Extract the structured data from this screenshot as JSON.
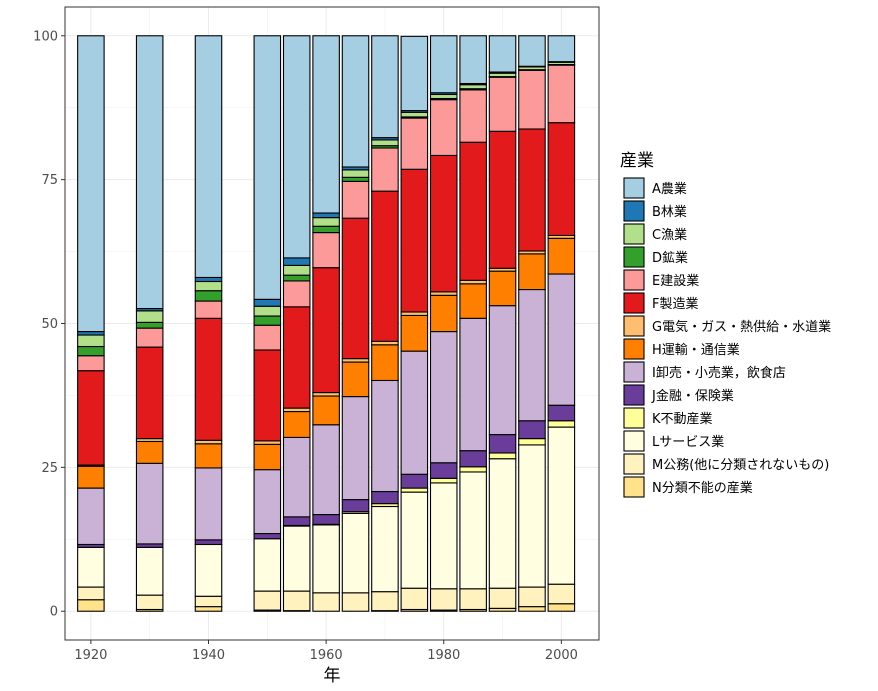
{
  "chart_data": {
    "type": "bar",
    "stacked": true,
    "xlabel": "年",
    "ylabel": "",
    "xlim": [
      1915.6,
      2006.4
    ],
    "ylim": [
      -5,
      105
    ],
    "x_ticks": [
      1920,
      1940,
      1960,
      1980,
      2000
    ],
    "y_ticks": [
      0,
      25,
      50,
      75,
      100
    ],
    "grid": true,
    "legend_title": "産業",
    "legend_position": "right",
    "bar_width_years": 4.5,
    "years": [
      1920,
      1930,
      1940,
      1950,
      1955,
      1960,
      1965,
      1970,
      1975,
      1980,
      1985,
      1990,
      1995,
      2000
    ],
    "series": [
      {
        "name": "N分類不能の産業",
        "color": "#FFE28A",
        "values": [
          2.0,
          0.3,
          0.8,
          0.2,
          0.1,
          0.0,
          0.0,
          0.1,
          0.3,
          0.2,
          0.3,
          0.5,
          0.8,
          1.3
        ]
      },
      {
        "name": "M公務(他に分類されないもの)",
        "color": "#FFF2BE",
        "values": [
          2.2,
          2.5,
          1.8,
          3.3,
          3.4,
          3.2,
          3.2,
          3.3,
          3.7,
          3.7,
          3.6,
          3.5,
          3.4,
          3.4
        ]
      },
      {
        "name": "Lサービス業",
        "color": "#FFFEE0",
        "values": [
          6.9,
          8.3,
          9.0,
          9.1,
          11.3,
          11.8,
          13.8,
          14.8,
          16.7,
          18.4,
          20.3,
          22.5,
          24.7,
          27.3
        ]
      },
      {
        "name": "K不動産業",
        "color": "#FFFF99",
        "values": [
          0.0,
          0.0,
          0.0,
          0.0,
          0.1,
          0.1,
          0.3,
          0.5,
          0.7,
          0.8,
          0.9,
          1.0,
          1.1,
          1.1
        ]
      },
      {
        "name": "J金融・保険業",
        "color": "#6A3D9A",
        "values": [
          0.5,
          0.6,
          0.8,
          0.9,
          1.5,
          1.7,
          2.1,
          2.1,
          2.4,
          2.7,
          2.8,
          3.2,
          3.1,
          2.7
        ]
      },
      {
        "name": "I卸売・小売業，飲食店",
        "color": "#CAB2D6",
        "values": [
          9.8,
          14.0,
          12.5,
          11.1,
          13.8,
          15.6,
          17.9,
          19.3,
          21.4,
          22.8,
          23.0,
          22.4,
          22.8,
          22.8
        ]
      },
      {
        "name": "H運輸・通信業",
        "color": "#FF7F00",
        "values": [
          3.8,
          3.8,
          4.2,
          4.4,
          4.5,
          5.0,
          6.0,
          6.2,
          6.2,
          6.3,
          6.0,
          6.0,
          6.2,
          6.2
        ]
      },
      {
        "name": "G電気・ガス・熱供給・水道業",
        "color": "#FDBF6F",
        "values": [
          0.2,
          0.5,
          0.6,
          0.6,
          0.6,
          0.6,
          0.6,
          0.6,
          0.6,
          0.6,
          0.6,
          0.5,
          0.5,
          0.5
        ]
      },
      {
        "name": "F製造業",
        "color": "#E31A1C",
        "values": [
          16.4,
          15.9,
          21.2,
          15.8,
          17.6,
          21.7,
          24.4,
          26.1,
          24.8,
          23.7,
          24.0,
          23.8,
          21.2,
          19.6
        ]
      },
      {
        "name": "E建設業",
        "color": "#FB9A99",
        "values": [
          2.6,
          3.3,
          3.0,
          4.3,
          4.5,
          6.1,
          6.4,
          7.5,
          8.9,
          9.7,
          9.1,
          9.4,
          10.2,
          10.0
        ]
      },
      {
        "name": "D鉱業",
        "color": "#33A02C",
        "values": [
          1.6,
          1.0,
          1.8,
          1.6,
          1.0,
          1.1,
          0.7,
          0.4,
          0.2,
          0.2,
          0.2,
          0.1,
          0.1,
          0.1
        ]
      },
      {
        "name": "C漁業",
        "color": "#B2DF8A",
        "values": [
          2.0,
          2.0,
          1.6,
          1.7,
          1.7,
          1.5,
          1.3,
          1.0,
          0.8,
          0.7,
          0.7,
          0.6,
          0.5,
          0.4
        ]
      },
      {
        "name": "B林業",
        "color": "#1F78B4",
        "values": [
          0.6,
          0.4,
          0.7,
          1.2,
          1.3,
          0.8,
          0.5,
          0.4,
          0.3,
          0.3,
          0.2,
          0.2,
          0.1,
          0.1
        ]
      },
      {
        "name": "A農業",
        "color": "#A6CEE3",
        "values": [
          51.4,
          47.4,
          42.0,
          45.8,
          38.6,
          30.8,
          22.8,
          17.7,
          12.9,
          9.9,
          8.3,
          6.3,
          5.3,
          4.5
        ]
      }
    ]
  }
}
